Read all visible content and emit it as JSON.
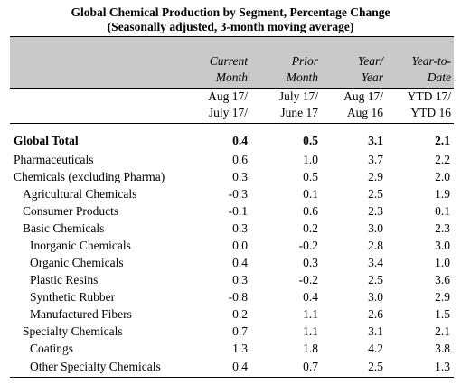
{
  "title": {
    "line1": "Global Chemical Production by Segment, Percentage Change",
    "line2": "(Seasonally adjusted, 3-month moving average)"
  },
  "columns": [
    {
      "head1": "Current",
      "head2": "Month",
      "sub1": "Aug 17/",
      "sub2": "July 17/"
    },
    {
      "head1": "Prior",
      "head2": "Month",
      "sub1": "July 17/",
      "sub2": "June 17"
    },
    {
      "head1": "Year/",
      "head2": "Year",
      "sub1": "Aug 17/",
      "sub2": "Aug 16"
    },
    {
      "head1": "Year-to-",
      "head2": "Date",
      "sub1": "YTD 17/",
      "sub2": "YTD 16"
    }
  ],
  "rows": [
    {
      "label": "Global Total",
      "values": [
        "0.4",
        "0.5",
        "3.1",
        "2.1"
      ]
    },
    {
      "label": "Pharmaceuticals",
      "values": [
        "0.6",
        "1.0",
        "3.7",
        "2.2"
      ]
    },
    {
      "label": "Chemicals (excluding Pharma)",
      "values": [
        "0.3",
        "0.5",
        "2.9",
        "2.0"
      ]
    },
    {
      "label": "Agricultural Chemicals",
      "values": [
        "-0.3",
        "0.1",
        "2.5",
        "1.9"
      ]
    },
    {
      "label": "Consumer Products",
      "values": [
        "-0.1",
        "0.6",
        "2.3",
        "0.1"
      ]
    },
    {
      "label": "Basic Chemicals",
      "values": [
        "0.3",
        "0.2",
        "3.0",
        "2.3"
      ]
    },
    {
      "label": "Inorganic Chemicals",
      "values": [
        "0.0",
        "-0.2",
        "2.8",
        "3.0"
      ]
    },
    {
      "label": "Organic Chemicals",
      "values": [
        "0.4",
        "0.3",
        "3.4",
        "1.0"
      ]
    },
    {
      "label": "Plastic Resins",
      "values": [
        "0.3",
        "-0.2",
        "2.5",
        "3.6"
      ]
    },
    {
      "label": "Synthetic Rubber",
      "values": [
        "-0.8",
        "0.4",
        "3.0",
        "2.9"
      ]
    },
    {
      "label": "Manufactured Fibers",
      "values": [
        "0.2",
        "1.1",
        "2.6",
        "1.5"
      ]
    },
    {
      "label": "Specialty Chemicals",
      "values": [
        "0.7",
        "1.1",
        "3.1",
        "2.1"
      ]
    },
    {
      "label": "Coatings",
      "values": [
        "1.3",
        "1.8",
        "4.2",
        "3.8"
      ]
    },
    {
      "label": "Other Specialty Chemicals",
      "values": [
        "0.4",
        "0.7",
        "2.5",
        "1.3"
      ]
    }
  ]
}
